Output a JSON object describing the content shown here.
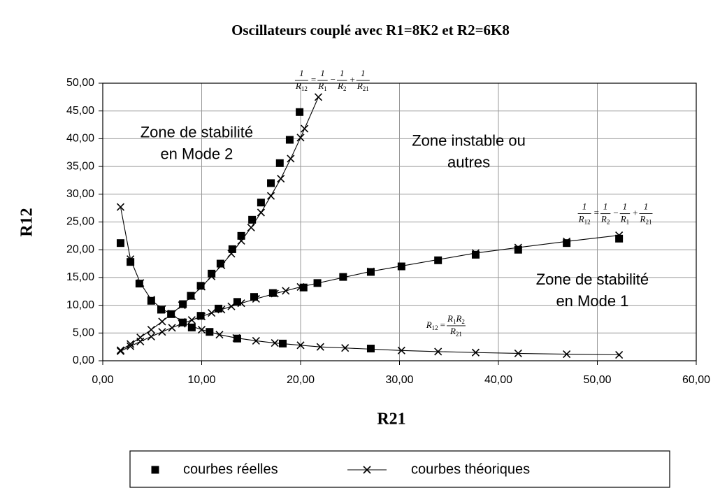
{
  "chart_data": {
    "type": "scatter",
    "title": "Oscillateurs couplé avec R1=8K2 et R2=6K8",
    "xlabel": "R21",
    "ylabel": "R12",
    "xlim": [
      0,
      60
    ],
    "ylim": [
      0,
      50
    ],
    "xticks": [
      {
        "value": 0,
        "label": "0,00"
      },
      {
        "value": 10,
        "label": "10,00"
      },
      {
        "value": 20,
        "label": "20,00"
      },
      {
        "value": 30,
        "label": "30,00"
      },
      {
        "value": 40,
        "label": "40,00"
      },
      {
        "value": 50,
        "label": "50,00"
      },
      {
        "value": 60,
        "label": "60,00"
      }
    ],
    "yticks": [
      {
        "value": 0,
        "label": "0,00"
      },
      {
        "value": 5,
        "label": "5,00"
      },
      {
        "value": 10,
        "label": "10,00"
      },
      {
        "value": 15,
        "label": "15,00"
      },
      {
        "value": 20,
        "label": "20,00"
      },
      {
        "value": 25,
        "label": "25,00"
      },
      {
        "value": 30,
        "label": "30,00"
      },
      {
        "value": 35,
        "label": "35,00"
      },
      {
        "value": 40,
        "label": "40,00"
      },
      {
        "value": 45,
        "label": "45,00"
      },
      {
        "value": 50,
        "label": "50,00"
      }
    ],
    "grid": true,
    "legend": "bottom",
    "series": [
      {
        "name": "courbes réelles",
        "color": "#000000",
        "marker": "square",
        "line": false,
        "curves": [
          {
            "x": [
              8.1,
              8.9,
              9.9,
              11.0,
              11.9,
              13.1,
              14.0,
              15.1,
              16.0,
              17.0,
              17.9,
              18.9,
              19.9
            ],
            "y": [
              10.2,
              11.7,
              13.5,
              15.7,
              17.5,
              20.1,
              22.5,
              25.4,
              28.5,
              32.0,
              35.6,
              39.8,
              44.8
            ]
          },
          {
            "x": [
              9.9,
              11.7,
              13.6,
              15.3,
              17.2,
              20.3,
              21.7,
              24.3,
              27.1,
              30.2,
              33.9,
              37.7,
              42.0,
              46.9,
              52.2
            ],
            "y": [
              8.1,
              9.4,
              10.6,
              11.5,
              12.2,
              13.2,
              14.0,
              15.1,
              16.0,
              17.0,
              18.1,
              19.1,
              20.0,
              21.2,
              22.0
            ]
          },
          {
            "x": [
              1.8,
              2.8,
              3.7,
              4.9,
              5.9,
              6.9,
              8.1,
              9.0,
              10.8,
              13.6,
              18.2,
              27.1
            ],
            "y": [
              21.2,
              17.8,
              13.9,
              10.8,
              9.2,
              8.4,
              6.9,
              6.0,
              5.2,
              4.0,
              3.1,
              2.2
            ]
          }
        ]
      },
      {
        "name": "courbes théoriques",
        "color": "#000000",
        "marker": "x",
        "line": true,
        "curves": [
          {
            "x": [
              1.8,
              2.8,
              3.8,
              4.9,
              6.0,
              7.0,
              8.0,
              9.0,
              10.0,
              11.0,
              12.0,
              13.0,
              14.0,
              15.0,
              16.0,
              17.0,
              18.0,
              19.0,
              20.0,
              20.4,
              21.8
            ],
            "y": [
              1.89,
              3.01,
              4.2,
              5.59,
              7.06,
              8.49,
              10.01,
              11.63,
              13.35,
              15.2,
              17.2,
              19.3,
              21.6,
              24.0,
              26.7,
              29.7,
              32.8,
              36.4,
              40.2,
              41.8,
              47.5
            ]
          },
          {
            "x": [
              1.8,
              2.8,
              3.8,
              4.9,
              6.0,
              7.0,
              8.0,
              9.0,
              10.0,
              11.0,
              12.0,
              13.0,
              14.0,
              15.5,
              17.4,
              18.5,
              20.0,
              27.1,
              37.7,
              42.0,
              46.9,
              52.2
            ],
            "y": [
              1.72,
              2.62,
              3.47,
              4.36,
              5.21,
              5.95,
              6.66,
              7.34,
              7.99,
              8.62,
              9.22,
              9.8,
              10.36,
              11.16,
              12.1,
              12.6,
              13.3,
              16.1,
              19.4,
              20.4,
              21.5,
              22.6
            ]
          },
          {
            "x": [
              1.8,
              2.8,
              3.8,
              4.9,
              6.0,
              7.0,
              8.0,
              9.0,
              10.0,
              11.8,
              13.5,
              15.5,
              17.4,
              20.0,
              22.0,
              24.5,
              30.2,
              33.9,
              37.7,
              42.0,
              46.9,
              52.2
            ],
            "y": [
              27.7,
              18.3,
              14.0,
              11.0,
              9.3,
              8.4,
              7.0,
              6.2,
              5.6,
              4.7,
              4.1,
              3.6,
              3.2,
              2.8,
              2.5,
              2.3,
              1.85,
              1.65,
              1.48,
              1.33,
              1.19,
              1.07
            ]
          }
        ]
      }
    ],
    "annotations": [
      {
        "lines": [
          "Zone de stabilité",
          "en Mode 2"
        ],
        "x": 9.5,
        "y": 39
      },
      {
        "lines": [
          "Zone instable ou",
          "autres"
        ],
        "x": 37,
        "y": 37.5
      },
      {
        "lines": [
          "Zone de stabilité",
          "en Mode 1"
        ],
        "x": 49.5,
        "y": 12.5
      }
    ],
    "formulas": [
      {
        "at": [
          19.5,
          50.5
        ],
        "terms": [
          {
            "num": [
              [
                "1"
              ]
            ],
            "den": [
              [
                "R",
                "12"
              ]
            ]
          },
          "=",
          {
            "num": [
              [
                "1"
              ]
            ],
            "den": [
              [
                "R",
                "1"
              ]
            ]
          },
          "−",
          {
            "num": [
              [
                "1"
              ]
            ],
            "den": [
              [
                "R",
                "2"
              ]
            ]
          },
          "+",
          {
            "num": [
              [
                "1"
              ]
            ],
            "den": [
              [
                "R",
                "21"
              ]
            ]
          }
        ]
      },
      {
        "at": [
          48.1,
          26.5
        ],
        "terms": [
          {
            "num": [
              [
                "1"
              ]
            ],
            "den": [
              [
                "R",
                "12"
              ]
            ]
          },
          "=",
          {
            "num": [
              [
                "1"
              ]
            ],
            "den": [
              [
                "R",
                "2"
              ]
            ]
          },
          "−",
          {
            "num": [
              [
                "1"
              ]
            ],
            "den": [
              [
                "R",
                "1"
              ]
            ]
          },
          "+",
          {
            "num": [
              [
                "1"
              ]
            ],
            "den": [
              [
                "R",
                "21"
              ]
            ]
          }
        ]
      },
      {
        "at": [
          32.7,
          6.3
        ],
        "terms": [
          {
            "base": "R",
            "sub": "12"
          },
          "=",
          {
            "num": [
              [
                "R",
                "1"
              ],
              [
                "R",
                "2"
              ]
            ],
            "den": [
              [
                "R",
                "21"
              ]
            ]
          }
        ]
      }
    ]
  }
}
